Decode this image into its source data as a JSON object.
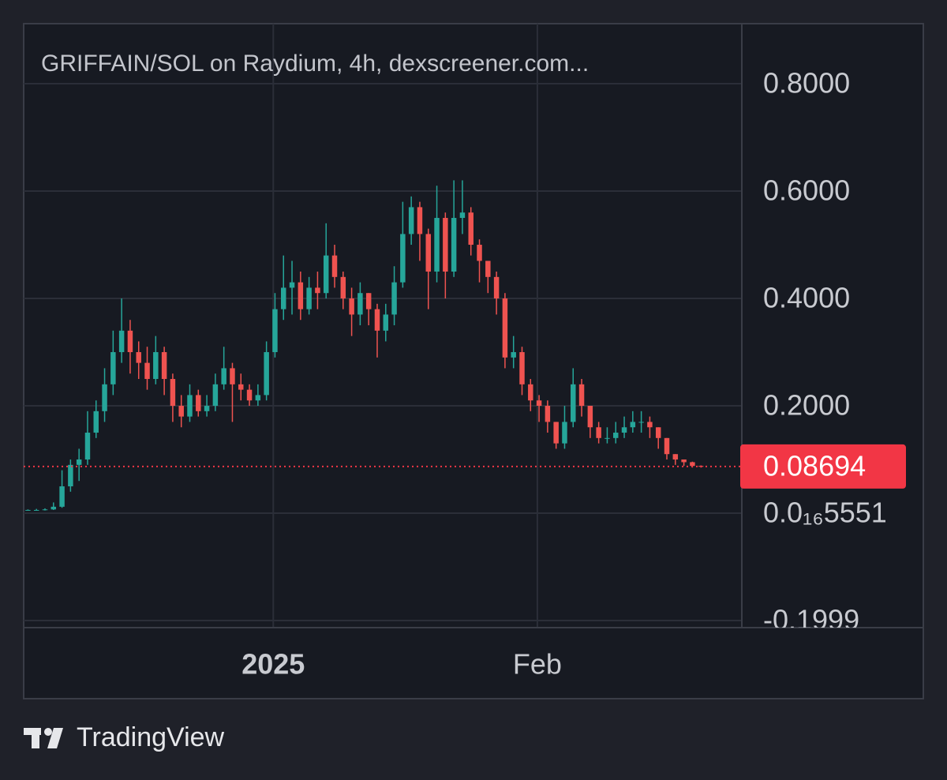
{
  "chart_data": {
    "type": "candlestick",
    "title": "GRIFFAIN/SOL on Raydium, 4h, dexscreener.com...",
    "open": [
      0.0055,
      0.006,
      0.006,
      0.007,
      0.012,
      0.05,
      0.09,
      0.1,
      0.15,
      0.19,
      0.24,
      0.3,
      0.34,
      0.3,
      0.28,
      0.25,
      0.3,
      0.25,
      0.2,
      0.18,
      0.22,
      0.19,
      0.2,
      0.24,
      0.27,
      0.24,
      0.23,
      0.21,
      0.22,
      0.3,
      0.38,
      0.42,
      0.43,
      0.38,
      0.42,
      0.41,
      0.48,
      0.44,
      0.4,
      0.37,
      0.41,
      0.38,
      0.34,
      0.37,
      0.43,
      0.52,
      0.57,
      0.52,
      0.45,
      0.55,
      0.45,
      0.55,
      0.56,
      0.5,
      0.47,
      0.44,
      0.4,
      0.29,
      0.3,
      0.24,
      0.21,
      0.2,
      0.17,
      0.13,
      0.17,
      0.24,
      0.2,
      0.16,
      0.14,
      0.14,
      0.15,
      0.16,
      0.17,
      0.17,
      0.16,
      0.14,
      0.11,
      0.1,
      0.095,
      0.088
    ],
    "high": [
      0.007,
      0.008,
      0.009,
      0.02,
      0.08,
      0.1,
      0.12,
      0.19,
      0.21,
      0.27,
      0.34,
      0.4,
      0.36,
      0.32,
      0.31,
      0.33,
      0.31,
      0.26,
      0.22,
      0.24,
      0.23,
      0.22,
      0.26,
      0.31,
      0.28,
      0.26,
      0.24,
      0.24,
      0.32,
      0.41,
      0.48,
      0.47,
      0.45,
      0.44,
      0.45,
      0.54,
      0.5,
      0.45,
      0.42,
      0.43,
      0.41,
      0.39,
      0.39,
      0.46,
      0.58,
      0.59,
      0.58,
      0.53,
      0.61,
      0.56,
      0.62,
      0.62,
      0.57,
      0.51,
      0.46,
      0.45,
      0.41,
      0.33,
      0.31,
      0.25,
      0.22,
      0.21,
      0.17,
      0.2,
      0.27,
      0.25,
      0.2,
      0.17,
      0.16,
      0.17,
      0.18,
      0.19,
      0.19,
      0.18,
      0.16,
      0.14,
      0.11,
      0.1,
      0.096,
      0.089
    ],
    "low": [
      0.005,
      0.005,
      0.005,
      0.006,
      0.01,
      0.04,
      0.06,
      0.09,
      0.14,
      0.17,
      0.22,
      0.28,
      0.26,
      0.25,
      0.23,
      0.24,
      0.22,
      0.17,
      0.16,
      0.17,
      0.18,
      0.18,
      0.19,
      0.23,
      0.17,
      0.21,
      0.2,
      0.2,
      0.21,
      0.29,
      0.36,
      0.37,
      0.36,
      0.37,
      0.38,
      0.4,
      0.42,
      0.38,
      0.33,
      0.35,
      0.35,
      0.29,
      0.32,
      0.35,
      0.42,
      0.5,
      0.47,
      0.38,
      0.43,
      0.4,
      0.44,
      0.52,
      0.48,
      0.43,
      0.41,
      0.37,
      0.27,
      0.27,
      0.22,
      0.19,
      0.17,
      0.15,
      0.12,
      0.12,
      0.16,
      0.18,
      0.14,
      0.13,
      0.13,
      0.13,
      0.14,
      0.15,
      0.15,
      0.14,
      0.12,
      0.1,
      0.09,
      0.088,
      0.085,
      0.085
    ],
    "close": [
      0.006,
      0.006,
      0.007,
      0.012,
      0.05,
      0.09,
      0.1,
      0.15,
      0.19,
      0.24,
      0.3,
      0.34,
      0.3,
      0.28,
      0.25,
      0.3,
      0.25,
      0.2,
      0.18,
      0.22,
      0.19,
      0.2,
      0.24,
      0.27,
      0.24,
      0.23,
      0.21,
      0.22,
      0.3,
      0.38,
      0.42,
      0.43,
      0.38,
      0.42,
      0.41,
      0.48,
      0.44,
      0.4,
      0.37,
      0.41,
      0.38,
      0.34,
      0.37,
      0.43,
      0.52,
      0.57,
      0.52,
      0.45,
      0.55,
      0.45,
      0.55,
      0.56,
      0.5,
      0.47,
      0.44,
      0.4,
      0.29,
      0.3,
      0.24,
      0.21,
      0.2,
      0.17,
      0.13,
      0.17,
      0.24,
      0.2,
      0.16,
      0.14,
      0.14,
      0.15,
      0.16,
      0.17,
      0.17,
      0.16,
      0.14,
      0.11,
      0.1,
      0.095,
      0.088,
      0.087
    ],
    "up_color": "#26a69a",
    "down_color": "#ef5350",
    "xlim": [
      0,
      84.3
    ],
    "xticks": [
      {
        "value": 29.3,
        "label": "2025"
      },
      {
        "value": 60.3,
        "label": "Feb"
      }
    ],
    "ylim": [
      -0.2132,
      0.9118
    ],
    "yticks": [
      {
        "value": -0.1999,
        "label": "-0.1999"
      },
      {
        "value": 5.551e-17,
        "label": "0.0₁₆5551"
      },
      {
        "value": 0.2,
        "label": "0.2000"
      },
      {
        "value": 0.4,
        "label": "0.4000"
      },
      {
        "value": 0.6,
        "label": "0.6000"
      },
      {
        "value": 0.8,
        "label": "0.8000"
      }
    ],
    "grid": true,
    "last_price": 0.08694,
    "last_price_color": "#f23645"
  },
  "footer": {
    "brand": "TradingView"
  }
}
